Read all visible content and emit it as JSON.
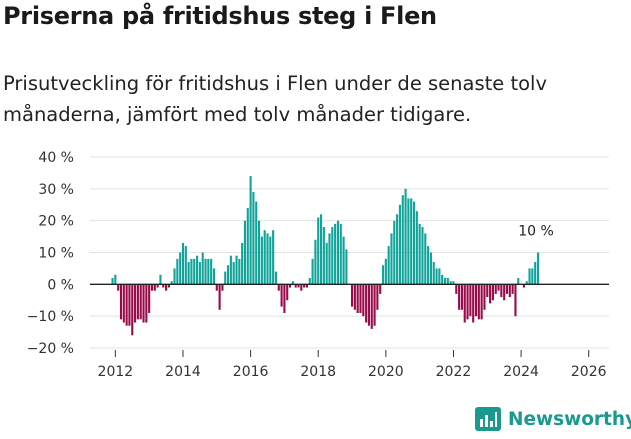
{
  "title": "Priserna på fritidshus steg i Flen",
  "subtitle": "Prisutveckling för fritidshus i Flen under de senaste tolv månaderna, jämfört med tolv månader tidigare.",
  "brand": "Newsworthy",
  "colors": {
    "positive": "#0fa39a",
    "negative": "#9a0a4a",
    "zero_line": "#222222",
    "grid": "#e3e3e3",
    "brand": "#1a9a8e"
  },
  "chart_data": {
    "type": "bar",
    "title": "Priserna på fritidshus steg i Flen",
    "xlabel": "",
    "ylabel": "",
    "ylim": [
      -20,
      40
    ],
    "y_ticks": [
      40,
      30,
      20,
      10,
      0,
      -10,
      -20
    ],
    "y_tick_labels": [
      "40 %",
      "30 %",
      "20 %",
      "10 %",
      "0 %",
      "−10 %",
      "−20 %"
    ],
    "x_ticks": [
      2012,
      2014,
      2016,
      2018,
      2020,
      2022,
      2024,
      2026
    ],
    "x_tick_labels": [
      "2012",
      "2014",
      "2016",
      "2018",
      "2020",
      "2022",
      "2024",
      "2026"
    ],
    "x_range": [
      2011.25,
      2026.6
    ],
    "start": {
      "year": 2011,
      "month": 12
    },
    "values": [
      2,
      3,
      -2,
      -11,
      -12,
      -13,
      -13,
      -16,
      -12,
      -11,
      -11,
      -12,
      -12,
      -9,
      -2,
      -2,
      -1,
      3,
      -1,
      -2,
      -1,
      1,
      5,
      8,
      10,
      13,
      12,
      7,
      8,
      8,
      9,
      7,
      10,
      8,
      8,
      8,
      5,
      -2,
      -8,
      -2,
      4,
      6,
      9,
      7,
      9,
      8,
      13,
      20,
      24,
      34,
      29,
      26,
      20,
      15,
      17,
      16,
      15,
      17,
      4,
      -2,
      -7,
      -9,
      -5,
      -1,
      1,
      -1,
      -1,
      -2,
      -1,
      -1,
      2,
      8,
      14,
      21,
      22,
      18,
      13,
      16,
      18,
      19,
      20,
      19,
      15,
      11,
      0,
      -7,
      -8,
      -9,
      -9,
      -10,
      -12,
      -13,
      -14,
      -13,
      -8,
      -3,
      6,
      8,
      12,
      16,
      20,
      22,
      25,
      28,
      30,
      27,
      27,
      26,
      23,
      19,
      18,
      16,
      12,
      10,
      7,
      5,
      5,
      3,
      2,
      2,
      1,
      1,
      -3,
      -8,
      -8,
      -12,
      -11,
      -10,
      -12,
      -10,
      -11,
      -11,
      -8,
      -4,
      -6,
      -5,
      -3,
      -2,
      -4,
      -5,
      -3,
      -4,
      -3,
      -10,
      2,
      0,
      -1,
      1,
      5,
      5,
      7,
      10
    ],
    "annotation": {
      "label": "10 %",
      "value": 10,
      "target": "last-bar"
    }
  }
}
